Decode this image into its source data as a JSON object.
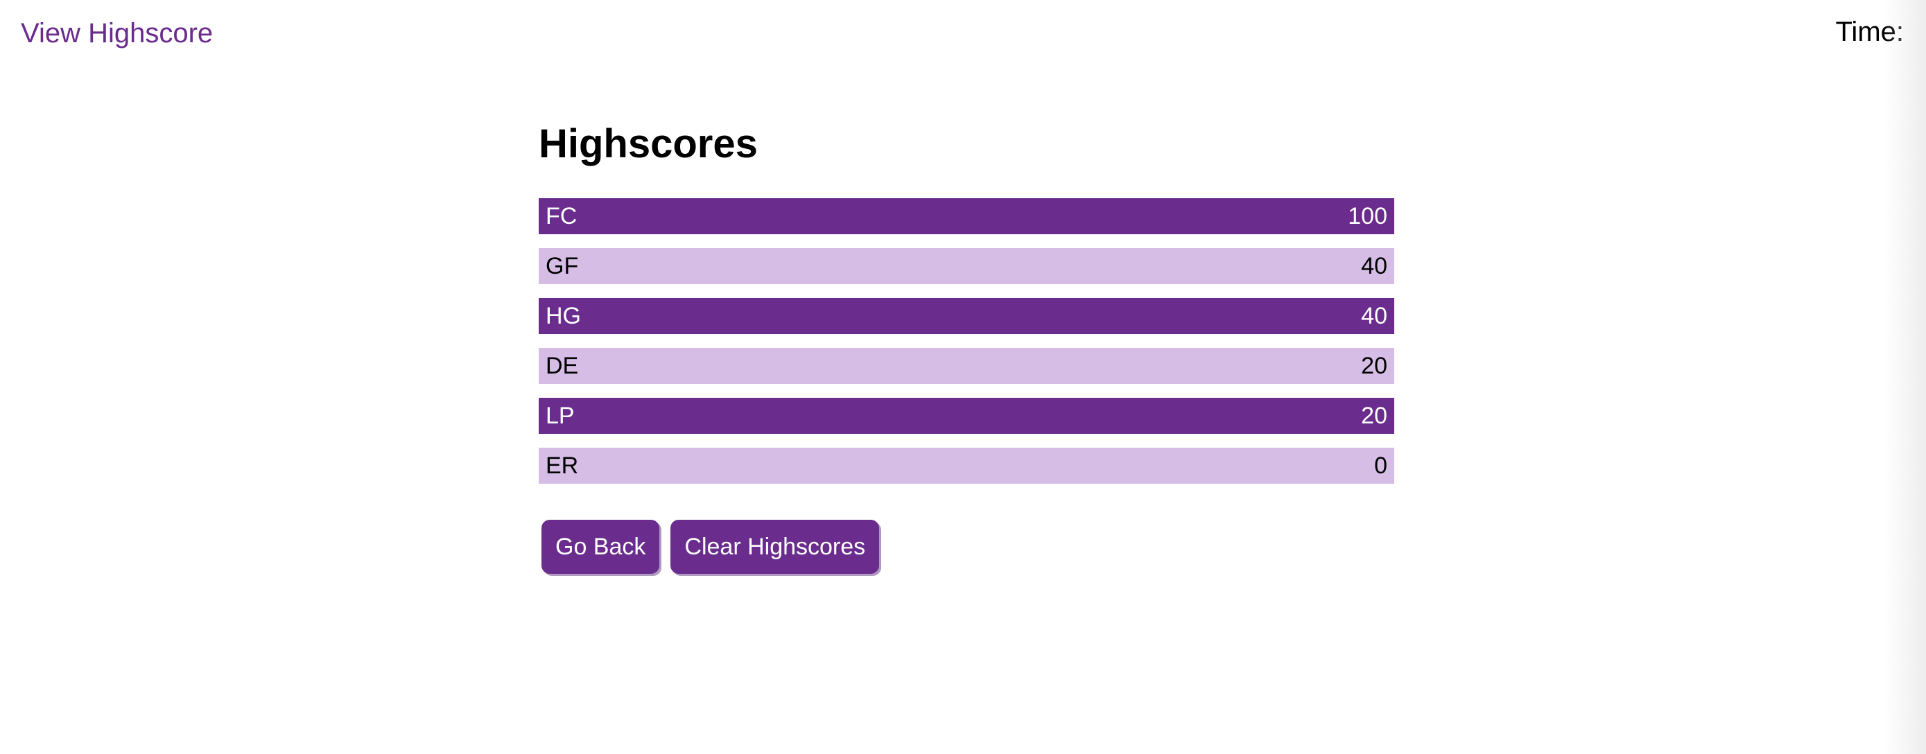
{
  "header": {
    "view_highscore_link": "View Highscore",
    "timer_label": "Time:",
    "timer_value": ""
  },
  "main": {
    "title": "Highscores",
    "scores": [
      {
        "initials": "FC",
        "score": "100"
      },
      {
        "initials": "GF",
        "score": "40"
      },
      {
        "initials": "HG",
        "score": "40"
      },
      {
        "initials": "DE",
        "score": "20"
      },
      {
        "initials": "LP",
        "score": "20"
      },
      {
        "initials": "ER",
        "score": "0"
      }
    ],
    "go_back_label": "Go Back",
    "clear_label": "Clear Highscores"
  },
  "colors": {
    "accent": "#6a2c8d",
    "row_light": "#d6bde6",
    "background": "#ffffff"
  }
}
